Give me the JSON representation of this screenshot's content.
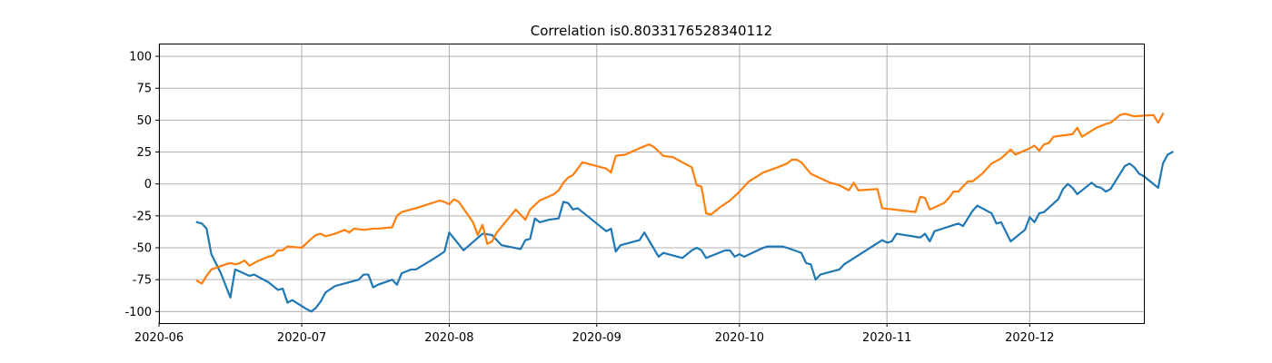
{
  "chart_data": {
    "type": "line",
    "title": "Correlation is0.8033176528340112",
    "xlabel": "",
    "ylabel": "",
    "x_ticks": [
      "2020-06",
      "2020-07",
      "2020-08",
      "2020-09",
      "2020-10",
      "2020-11",
      "2020-12"
    ],
    "y_ticks": [
      100,
      75,
      50,
      25,
      0,
      -25,
      -50,
      -75,
      -100
    ],
    "xlim": [
      "2020-06-01",
      "2020-12-25"
    ],
    "ylim": [
      -109,
      110
    ],
    "grid": true,
    "series_colors": [
      "#1f77b4",
      "#ff7f0e"
    ],
    "series": [
      {
        "values": [
          [
            "2020-06-09",
            -30
          ],
          [
            "2020-06-10",
            -31
          ],
          [
            "2020-06-11",
            -35
          ],
          [
            "2020-06-12",
            -55
          ],
          [
            "2020-06-14",
            -70
          ],
          [
            "2020-06-16",
            -89
          ],
          [
            "2020-06-17",
            -67
          ],
          [
            "2020-06-20",
            -72
          ],
          [
            "2020-06-21",
            -71
          ],
          [
            "2020-06-24",
            -77
          ],
          [
            "2020-06-26",
            -83
          ],
          [
            "2020-06-27",
            -82
          ],
          [
            "2020-06-28",
            -93
          ],
          [
            "2020-06-29",
            -91
          ],
          [
            "2020-07-02",
            -98
          ],
          [
            "2020-07-03",
            -100
          ],
          [
            "2020-07-04",
            -97
          ],
          [
            "2020-07-05",
            -92
          ],
          [
            "2020-07-06",
            -85
          ],
          [
            "2020-07-08",
            -80
          ],
          [
            "2020-07-12",
            -76
          ],
          [
            "2020-07-13",
            -75
          ],
          [
            "2020-07-14",
            -71
          ],
          [
            "2020-07-15",
            -71
          ],
          [
            "2020-07-16",
            -81
          ],
          [
            "2020-07-17",
            -79
          ],
          [
            "2020-07-20",
            -75
          ],
          [
            "2020-07-21",
            -79
          ],
          [
            "2020-07-22",
            -70
          ],
          [
            "2020-07-24",
            -67
          ],
          [
            "2020-07-25",
            -67
          ],
          [
            "2020-07-29",
            -58
          ],
          [
            "2020-07-31",
            -53
          ],
          [
            "2020-08-01",
            -38
          ],
          [
            "2020-08-04",
            -52
          ],
          [
            "2020-08-08",
            -39
          ],
          [
            "2020-08-10",
            -40
          ],
          [
            "2020-08-12",
            -48
          ],
          [
            "2020-08-16",
            -51
          ],
          [
            "2020-08-17",
            -44
          ],
          [
            "2020-08-18",
            -43
          ],
          [
            "2020-08-19",
            -27
          ],
          [
            "2020-08-20",
            -30
          ],
          [
            "2020-08-22",
            -28
          ],
          [
            "2020-08-24",
            -27
          ],
          [
            "2020-08-25",
            -14
          ],
          [
            "2020-08-26",
            -15
          ],
          [
            "2020-08-27",
            -20
          ],
          [
            "2020-08-28",
            -19
          ],
          [
            "2020-09-03",
            -37
          ],
          [
            "2020-09-04",
            -35
          ],
          [
            "2020-09-05",
            -53
          ],
          [
            "2020-09-06",
            -48
          ],
          [
            "2020-09-10",
            -44
          ],
          [
            "2020-09-11",
            -38
          ],
          [
            "2020-09-14",
            -57
          ],
          [
            "2020-09-15",
            -54
          ],
          [
            "2020-09-19",
            -58
          ],
          [
            "2020-09-21",
            -52
          ],
          [
            "2020-09-22",
            -50
          ],
          [
            "2020-09-23",
            -52
          ],
          [
            "2020-09-24",
            -58
          ],
          [
            "2020-09-28",
            -52
          ],
          [
            "2020-09-29",
            -52
          ],
          [
            "2020-09-30",
            -57
          ],
          [
            "2020-10-01",
            -55
          ],
          [
            "2020-10-02",
            -57
          ],
          [
            "2020-10-06",
            -50
          ],
          [
            "2020-10-07",
            -49
          ],
          [
            "2020-10-10",
            -49
          ],
          [
            "2020-10-11",
            -50
          ],
          [
            "2020-10-14",
            -54
          ],
          [
            "2020-10-15",
            -62
          ],
          [
            "2020-10-16",
            -63
          ],
          [
            "2020-10-17",
            -75
          ],
          [
            "2020-10-18",
            -71
          ],
          [
            "2020-10-22",
            -67
          ],
          [
            "2020-10-23",
            -63
          ],
          [
            "2020-10-31",
            -44
          ],
          [
            "2020-11-01",
            -46
          ],
          [
            "2020-11-02",
            -45
          ],
          [
            "2020-11-03",
            -39
          ],
          [
            "2020-11-08",
            -42
          ],
          [
            "2020-11-09",
            -39
          ],
          [
            "2020-11-10",
            -45
          ],
          [
            "2020-11-11",
            -37
          ],
          [
            "2020-11-16",
            -31
          ],
          [
            "2020-11-17",
            -33
          ],
          [
            "2020-11-18",
            -27
          ],
          [
            "2020-11-19",
            -21
          ],
          [
            "2020-11-20",
            -17
          ],
          [
            "2020-11-23",
            -23
          ],
          [
            "2020-11-24",
            -31
          ],
          [
            "2020-11-25",
            -30
          ],
          [
            "2020-11-27",
            -45
          ],
          [
            "2020-11-30",
            -36
          ],
          [
            "2020-12-01",
            -26
          ],
          [
            "2020-12-02",
            -30
          ],
          [
            "2020-12-03",
            -23
          ],
          [
            "2020-12-04",
            -22
          ],
          [
            "2020-12-07",
            -12
          ],
          [
            "2020-12-08",
            -4
          ],
          [
            "2020-12-09",
            0
          ],
          [
            "2020-12-10",
            -3
          ],
          [
            "2020-12-11",
            -8
          ],
          [
            "2020-12-14",
            1
          ],
          [
            "2020-12-15",
            -2
          ],
          [
            "2020-12-16",
            -3
          ],
          [
            "2020-12-17",
            -6
          ],
          [
            "2020-12-18",
            -4
          ],
          [
            "2020-12-20",
            8
          ],
          [
            "2020-12-21",
            14
          ],
          [
            "2020-12-22",
            16
          ],
          [
            "2020-12-23",
            13
          ],
          [
            "2020-12-24",
            8
          ],
          [
            "2020-12-25",
            6
          ],
          [
            "2020-12-28",
            -3
          ],
          [
            "2020-12-29",
            16
          ],
          [
            "2020-12-30",
            23
          ],
          [
            "2020-12-31",
            25
          ]
        ]
      },
      {
        "values": [
          [
            "2020-06-09",
            -76
          ],
          [
            "2020-06-10",
            -78
          ],
          [
            "2020-06-11",
            -72
          ],
          [
            "2020-06-12",
            -67
          ],
          [
            "2020-06-15",
            -63
          ],
          [
            "2020-06-16",
            -62
          ],
          [
            "2020-06-17",
            -63
          ],
          [
            "2020-06-18",
            -62
          ],
          [
            "2020-06-19",
            -60
          ],
          [
            "2020-06-20",
            -64
          ],
          [
            "2020-06-22",
            -60
          ],
          [
            "2020-06-24",
            -57
          ],
          [
            "2020-06-25",
            -56
          ],
          [
            "2020-06-26",
            -52
          ],
          [
            "2020-06-27",
            -52
          ],
          [
            "2020-06-28",
            -49
          ],
          [
            "2020-07-01",
            -50
          ],
          [
            "2020-07-03",
            -43
          ],
          [
            "2020-07-04",
            -40
          ],
          [
            "2020-07-05",
            -39
          ],
          [
            "2020-07-06",
            -41
          ],
          [
            "2020-07-08",
            -39
          ],
          [
            "2020-07-10",
            -36
          ],
          [
            "2020-07-11",
            -38
          ],
          [
            "2020-07-12",
            -35
          ],
          [
            "2020-07-14",
            -36
          ],
          [
            "2020-07-16",
            -35
          ],
          [
            "2020-07-17",
            -35
          ],
          [
            "2020-07-20",
            -34
          ],
          [
            "2020-07-21",
            -25
          ],
          [
            "2020-07-22",
            -22
          ],
          [
            "2020-07-23",
            -21
          ],
          [
            "2020-07-25",
            -19
          ],
          [
            "2020-07-30",
            -13
          ],
          [
            "2020-07-31",
            -14
          ],
          [
            "2020-08-01",
            -16
          ],
          [
            "2020-08-02",
            -12
          ],
          [
            "2020-08-03",
            -14
          ],
          [
            "2020-08-06",
            -30
          ],
          [
            "2020-08-07",
            -40
          ],
          [
            "2020-08-08",
            -32
          ],
          [
            "2020-08-09",
            -47
          ],
          [
            "2020-08-10",
            -45
          ],
          [
            "2020-08-11",
            -38
          ],
          [
            "2020-08-15",
            -20
          ],
          [
            "2020-08-17",
            -28
          ],
          [
            "2020-08-18",
            -20
          ],
          [
            "2020-08-20",
            -13
          ],
          [
            "2020-08-23",
            -8
          ],
          [
            "2020-08-24",
            -5
          ],
          [
            "2020-08-25",
            1
          ],
          [
            "2020-08-26",
            5
          ],
          [
            "2020-08-27",
            7
          ],
          [
            "2020-08-29",
            17
          ],
          [
            "2020-09-03",
            12
          ],
          [
            "2020-09-04",
            9
          ],
          [
            "2020-09-05",
            22
          ],
          [
            "2020-09-07",
            23
          ],
          [
            "2020-09-10",
            28
          ],
          [
            "2020-09-12",
            31
          ],
          [
            "2020-09-13",
            29
          ],
          [
            "2020-09-15",
            22
          ],
          [
            "2020-09-17",
            21
          ],
          [
            "2020-09-21",
            13
          ],
          [
            "2020-09-22",
            -1
          ],
          [
            "2020-09-23",
            -2
          ],
          [
            "2020-09-24",
            -23
          ],
          [
            "2020-09-25",
            -24
          ],
          [
            "2020-09-27",
            -18
          ],
          [
            "2020-09-29",
            -13
          ],
          [
            "2020-10-01",
            -6
          ],
          [
            "2020-10-03",
            2
          ],
          [
            "2020-10-06",
            9
          ],
          [
            "2020-10-09",
            13
          ],
          [
            "2020-10-11",
            16
          ],
          [
            "2020-10-12",
            19
          ],
          [
            "2020-10-13",
            19
          ],
          [
            "2020-10-14",
            17
          ],
          [
            "2020-10-16",
            8
          ],
          [
            "2020-10-20",
            1
          ],
          [
            "2020-10-22",
            -1
          ],
          [
            "2020-10-24",
            -5
          ],
          [
            "2020-10-25",
            1
          ],
          [
            "2020-10-26",
            -5
          ],
          [
            "2020-10-30",
            -4
          ],
          [
            "2020-10-31",
            -19
          ],
          [
            "2020-11-07",
            -22
          ],
          [
            "2020-11-08",
            -10
          ],
          [
            "2020-11-09",
            -11
          ],
          [
            "2020-11-10",
            -20
          ],
          [
            "2020-11-13",
            -15
          ],
          [
            "2020-11-14",
            -11
          ],
          [
            "2020-11-15",
            -6
          ],
          [
            "2020-11-16",
            -6
          ],
          [
            "2020-11-18",
            2
          ],
          [
            "2020-11-19",
            2
          ],
          [
            "2020-11-21",
            8
          ],
          [
            "2020-11-23",
            16
          ],
          [
            "2020-11-25",
            20
          ],
          [
            "2020-11-27",
            27
          ],
          [
            "2020-11-28",
            23
          ],
          [
            "2020-12-01",
            28
          ],
          [
            "2020-12-02",
            30
          ],
          [
            "2020-12-03",
            26
          ],
          [
            "2020-12-04",
            31
          ],
          [
            "2020-12-05",
            32
          ],
          [
            "2020-12-06",
            37
          ],
          [
            "2020-12-08",
            38
          ],
          [
            "2020-12-10",
            39
          ],
          [
            "2020-12-11",
            44
          ],
          [
            "2020-12-12",
            37
          ],
          [
            "2020-12-15",
            44
          ],
          [
            "2020-12-17",
            47
          ],
          [
            "2020-12-18",
            48
          ],
          [
            "2020-12-20",
            54
          ],
          [
            "2020-12-21",
            55
          ],
          [
            "2020-12-22",
            54
          ],
          [
            "2020-12-23",
            53
          ],
          [
            "2020-12-27",
            54
          ],
          [
            "2020-12-28",
            48
          ],
          [
            "2020-12-29",
            55
          ]
        ]
      }
    ]
  }
}
